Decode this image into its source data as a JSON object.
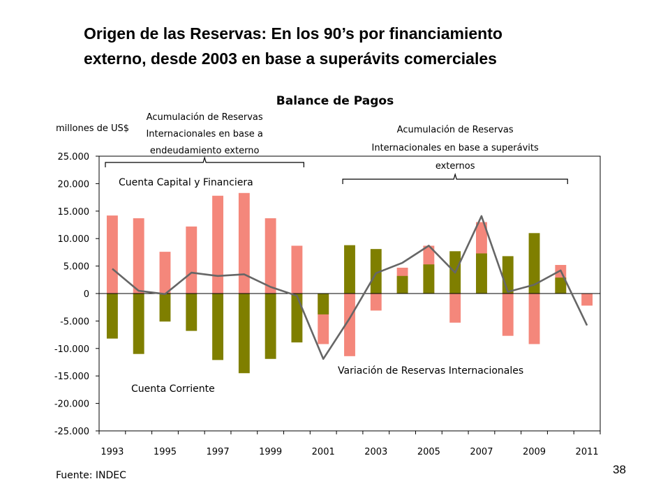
{
  "slide": {
    "title_line1": "Origen de las Reservas: En los 90’s por financiamiento",
    "title_line2": "externo, desde 2003 en base a superávits comerciales",
    "page_number": "38",
    "source": "Fuente: INDEC"
  },
  "chart_data": {
    "type": "bar",
    "title": "Balance de Pagos",
    "ylabel": "millones de US$",
    "ylim": [
      -25000,
      25000
    ],
    "yticks": [
      25000,
      20000,
      15000,
      10000,
      5000,
      0,
      -5000,
      -10000,
      -15000,
      -20000,
      -25000
    ],
    "ytick_labels": [
      "25.000",
      "20.000",
      "15.000",
      "10.000",
      "5.000",
      "0",
      "-5.000",
      "-10.000",
      "-15.000",
      "-20.000",
      "-25.000"
    ],
    "categories": [
      "1993",
      "1994",
      "1995",
      "1996",
      "1997",
      "1998",
      "1999",
      "2000",
      "2001",
      "2002",
      "2003",
      "2004",
      "2005",
      "2006",
      "2007",
      "2008",
      "2009",
      "2010",
      "2011"
    ],
    "xtick_labels": [
      "1993",
      "1995",
      "1997",
      "1999",
      "2001",
      "2003",
      "2005",
      "2007",
      "2009",
      "2011"
    ],
    "series": [
      {
        "name": "Cuenta Capital y Financiera",
        "color": "#f4877b",
        "values": [
          14200,
          13700,
          7600,
          12200,
          17800,
          18300,
          13700,
          8700,
          -9200,
          -11400,
          -3100,
          4700,
          8700,
          -5300,
          13000,
          -7700,
          -9200,
          5200,
          -2200
        ]
      },
      {
        "name": "Cuenta Corriente",
        "color": "#7f7f00",
        "values": [
          -8200,
          -11000,
          -5100,
          -6800,
          -12100,
          -14500,
          -11900,
          -8900,
          -3800,
          8800,
          8100,
          3200,
          5300,
          7700,
          7300,
          6800,
          11000,
          2900,
          0
        ]
      },
      {
        "name": "Variación de Reservas Internacionales",
        "color": "#666666",
        "type": "line",
        "values": [
          4500,
          500,
          -100,
          3800,
          3200,
          3500,
          1200,
          -400,
          -11900,
          -4500,
          3700,
          5600,
          8700,
          3800,
          14100,
          300,
          1600,
          4200,
          -5800
        ]
      }
    ],
    "annotations": [
      {
        "text_lines": [
          "Acumulación de Reservas",
          "Internacionales en base a",
          "endeudamiento externo"
        ],
        "from": "1993",
        "to": "2000"
      },
      {
        "text_lines": [
          "Acumulación de Reservas",
          "Internacionales en base a superávits",
          "externos"
        ],
        "from": "2002",
        "to": "2010"
      }
    ],
    "grid": false,
    "legend": "inline labels"
  }
}
